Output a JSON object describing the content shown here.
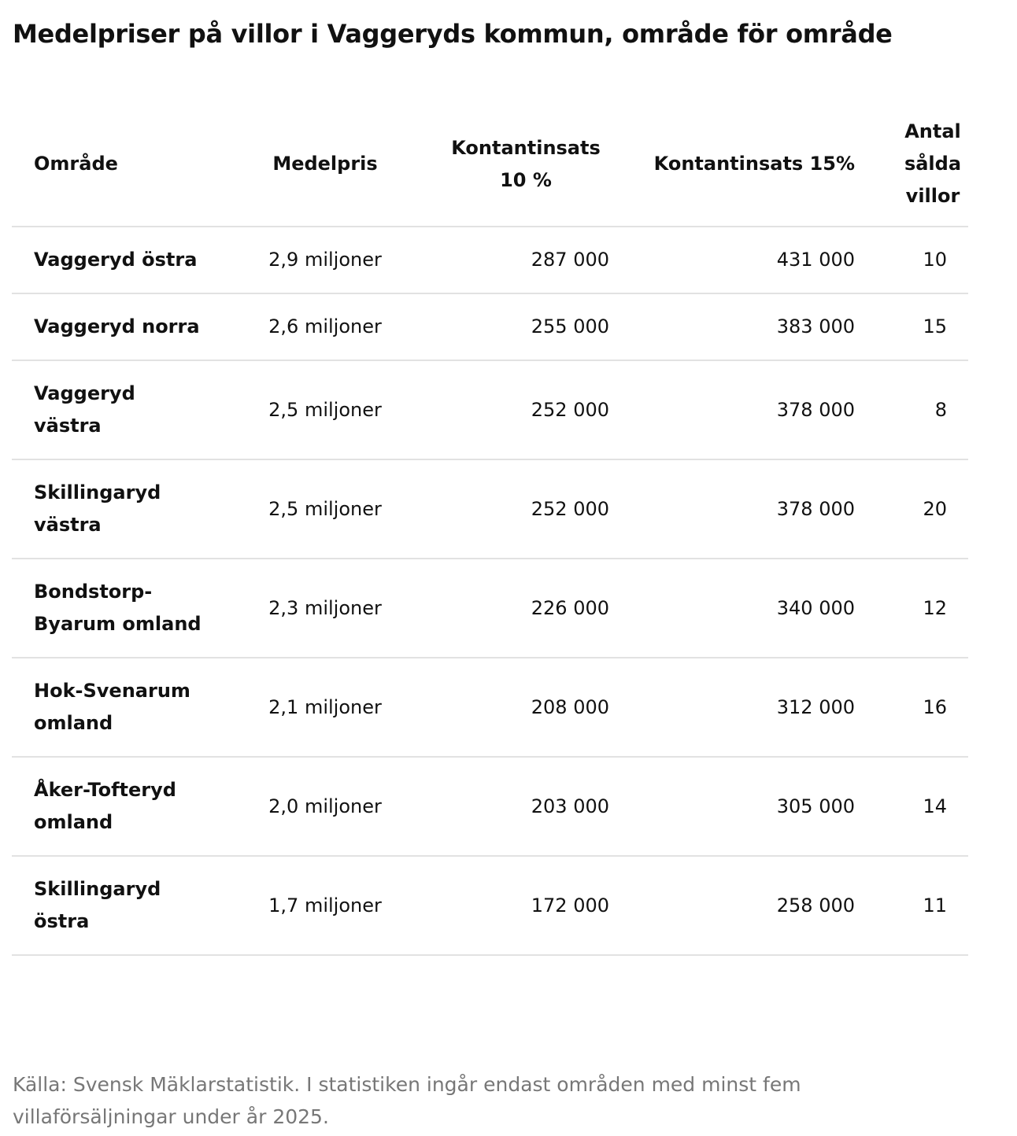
{
  "title": "Medelpriser på villor i Vaggeryds kommun, område för område",
  "table": {
    "headers": [
      "Område",
      "Medelpris",
      "Kontantinsats 10 %",
      "Kontantinsats 15%",
      "Antal sålda villor"
    ],
    "rows": [
      [
        "Vaggeryd östra",
        "2,9 miljoner",
        "287 000",
        "431 000",
        "10"
      ],
      [
        "Vaggeryd norra",
        "2,6 miljoner",
        "255 000",
        "383 000",
        "15"
      ],
      [
        "Vaggeryd västra",
        "2,5 miljoner",
        "252 000",
        "378 000",
        "8"
      ],
      [
        "Skillingaryd västra",
        "2,5 miljoner",
        "252 000",
        "378 000",
        "20"
      ],
      [
        "Bondstorp-Byarum omland",
        "2,3 miljoner",
        "226 000",
        "340 000",
        "12"
      ],
      [
        "Hok-Svenarum omland",
        "2,1 miljoner",
        "208 000",
        "312 000",
        "16"
      ],
      [
        "Åker-Tofteryd omland",
        "2,0 miljoner",
        "203 000",
        "305 000",
        "14"
      ],
      [
        "Skillingaryd östra",
        "1,7 miljoner",
        "172 000",
        "258 000",
        "11"
      ]
    ]
  },
  "source": "Källa: Svensk Mäklarstatistik. I statistiken ingår endast områden med minst fem villaförsäljningar under år 2025."
}
